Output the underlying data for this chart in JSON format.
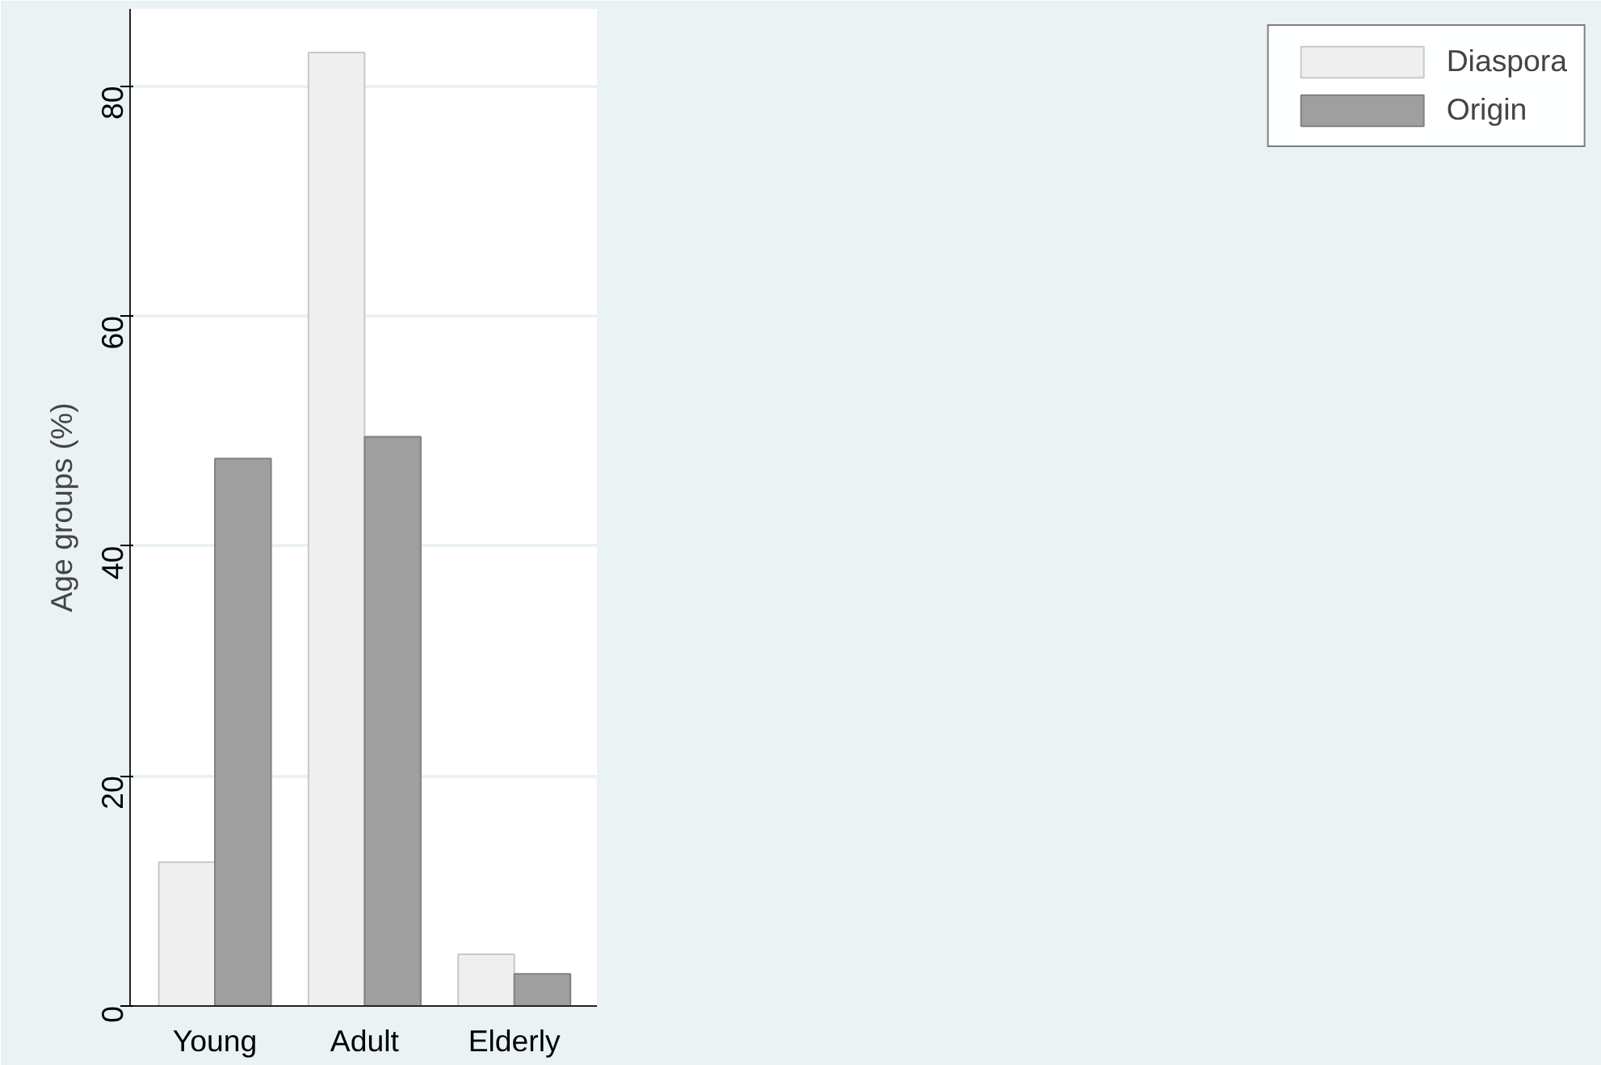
{
  "chart_data": {
    "type": "bar",
    "ylabel": "Age groups (%)",
    "categories": [
      "Young",
      "Adult",
      "Elderly"
    ],
    "series": [
      {
        "name": "Diaspora",
        "color": "#efefef",
        "values": [
          12.5,
          82.9,
          4.5
        ]
      },
      {
        "name": "Origin",
        "color": "#9f9f9f",
        "values": [
          47.6,
          49.5,
          2.8
        ]
      }
    ],
    "ylim": [
      0,
      86.7
    ],
    "yticks": [
      0,
      20,
      40,
      60,
      80
    ],
    "grid": "y",
    "legend": "right"
  }
}
